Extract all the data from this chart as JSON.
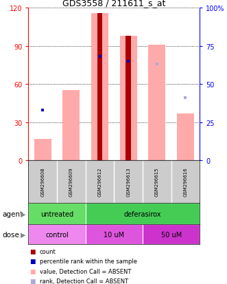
{
  "title": "GDS3558 / 211611_s_at",
  "samples": [
    "GSM296608",
    "GSM296609",
    "GSM296612",
    "GSM296613",
    "GSM296615",
    "GSM296616"
  ],
  "count_values": [
    0,
    0,
    116,
    98,
    0,
    0
  ],
  "pink_bar_values": [
    17,
    55,
    116,
    98,
    91,
    37
  ],
  "blue_dot_values": [
    33,
    0,
    68,
    65,
    0,
    0
  ],
  "light_blue_dot_values": [
    0,
    0,
    0,
    0,
    63,
    41
  ],
  "ylim_left": [
    0,
    120
  ],
  "ylim_right": [
    0,
    100
  ],
  "yticks_left": [
    0,
    30,
    60,
    90,
    120
  ],
  "yticks_right": [
    0,
    25,
    50,
    75,
    100
  ],
  "yticklabels_right": [
    "0",
    "25",
    "50",
    "75",
    "100%"
  ],
  "agent_groups": [
    {
      "label": "untreated",
      "span": [
        0,
        2
      ],
      "color": "#66dd66"
    },
    {
      "label": "deferasirox",
      "span": [
        2,
        6
      ],
      "color": "#44cc55"
    }
  ],
  "dose_groups": [
    {
      "label": "control",
      "span": [
        0,
        2
      ],
      "color": "#ee88ee"
    },
    {
      "label": "10 uM",
      "span": [
        2,
        4
      ],
      "color": "#dd55dd"
    },
    {
      "label": "50 uM",
      "span": [
        4,
        6
      ],
      "color": "#cc33cc"
    }
  ],
  "count_color": "#aa0000",
  "pink_bar_color": "#ffaaaa",
  "blue_dot_color": "#0000bb",
  "light_blue_dot_color": "#aaaadd",
  "agent_label": "agent",
  "dose_label": "dose",
  "legend_items": [
    {
      "color": "#aa0000",
      "label": "count"
    },
    {
      "color": "#0000bb",
      "label": "percentile rank within the sample"
    },
    {
      "color": "#ffaaaa",
      "label": "value, Detection Call = ABSENT"
    },
    {
      "color": "#aaaadd",
      "label": "rank, Detection Call = ABSENT"
    }
  ],
  "background_color": "#ffffff"
}
